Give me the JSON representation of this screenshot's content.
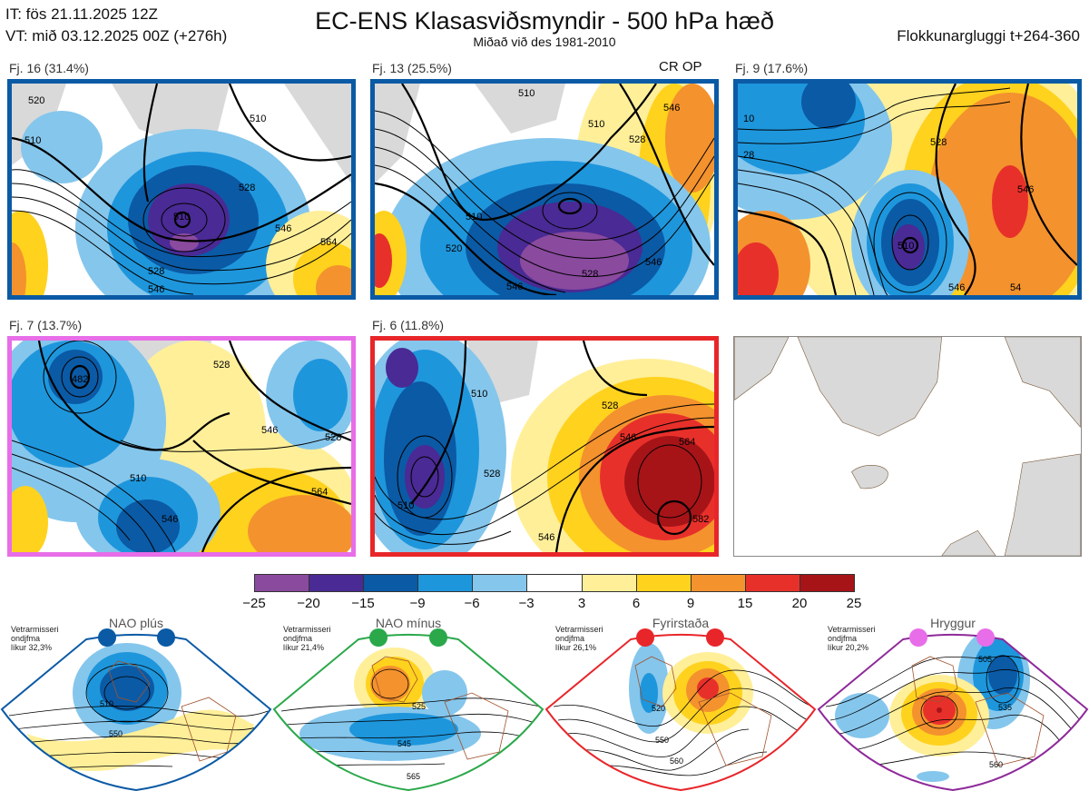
{
  "header": {
    "issued": "IT: fös 21.11.2025 12Z",
    "valid": "VT: mið 03.12.2025 00Z  (+276h)",
    "title": "EC-ENS Klasasviðsmyndir - 500 hPa hæð",
    "subtitle": "Miðað við des 1981-2010",
    "window": "Flokkunargluggi t+264-360"
  },
  "panels": [
    {
      "label": "Fj. 16 (31.4%)",
      "regime_color": "#0b5aa5"
    },
    {
      "label": "Fj. 13 (25.5%)",
      "regime_color": "#0b5aa5",
      "tag": "CR OP"
    },
    {
      "label": "Fj. 9 (17.6%)",
      "regime_color": "#0b5aa5"
    },
    {
      "label": "Fj. 7 (13.7%)",
      "regime_color": "#e86de8"
    },
    {
      "label": "Fj. 6 (11.8%)",
      "regime_color": "#e8262a"
    },
    {
      "label": "",
      "regime_color": "#dddddd"
    }
  ],
  "contour_labels": {
    "p1": [
      "510",
      "520",
      "528",
      "546",
      "528",
      "546",
      "510",
      "510",
      "564"
    ],
    "p2": [
      "510",
      "510",
      "520",
      "528",
      "546",
      "546",
      "546",
      "510",
      "528"
    ],
    "p3": [
      "10",
      "28",
      "510",
      "528",
      "546",
      "546",
      "54"
    ],
    "p4": [
      "482",
      "528",
      "528",
      "546",
      "546",
      "564",
      "510"
    ],
    "p5": [
      "510",
      "528",
      "546",
      "546",
      "564",
      "582",
      "528",
      "510"
    ]
  },
  "colorbar": {
    "colors": [
      "#8a4a9e",
      "#4a2a94",
      "#0b5aa5",
      "#1e96dc",
      "#85c6ec",
      "#ffffff",
      "#ffef99",
      "#ffd21e",
      "#f4922e",
      "#e8302a",
      "#a61418"
    ],
    "ticks": [
      "−25",
      "−20",
      "−15",
      "−9",
      "−6",
      "−3",
      "3",
      "6",
      "9",
      "15",
      "20",
      "25"
    ]
  },
  "regimes": [
    {
      "name": "NAO plús",
      "note": "Vetrarmisseri\nondjfma\nlíkur 32,3%",
      "color": "#0b5aa5",
      "labels": [
        "510",
        "550"
      ]
    },
    {
      "name": "NAO mínus",
      "note": "Vetrarmisseri\nondjfma\nlíkur 21,4%",
      "color": "#2aa84a",
      "labels": [
        "525",
        "545",
        "565"
      ]
    },
    {
      "name": "Fyrirstaða",
      "note": "Vetrarmisseri\nondjfma\nlíkur 26,1%",
      "color": "#e8262a",
      "labels": [
        "520",
        "550",
        "560"
      ]
    },
    {
      "name": "Hryggur",
      "note": "Vetrarmisseri\nondjfma\nlíkur 20,2%",
      "color": "#8e2a9a",
      "labels": [
        "505",
        "535",
        "560"
      ]
    }
  ]
}
